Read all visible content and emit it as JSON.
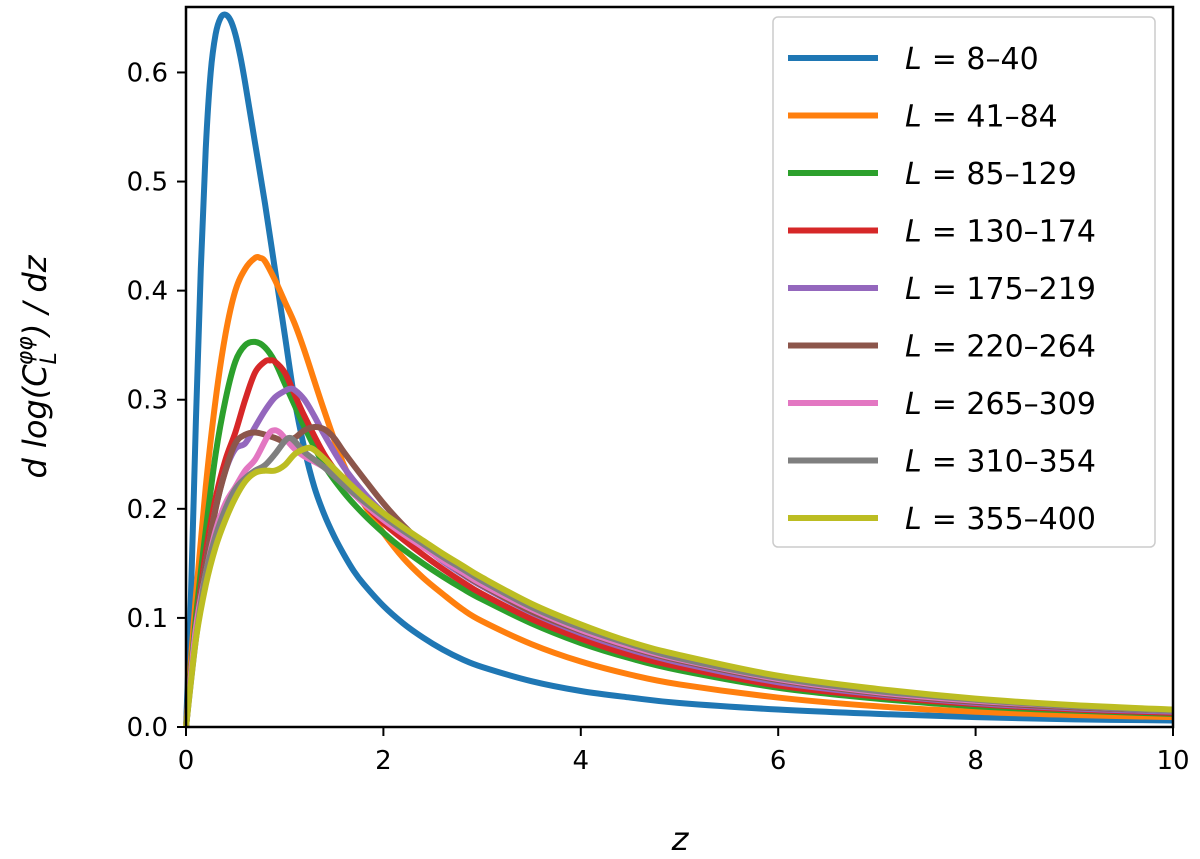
{
  "chart_data": {
    "type": "line",
    "title": "",
    "xlabel": "z",
    "ylabel": "d log(C_L^{φφ}) / dz",
    "xlim": [
      0,
      10
    ],
    "ylim": [
      0,
      0.66
    ],
    "xticks": [
      0,
      2,
      4,
      6,
      8,
      10
    ],
    "yticks": [
      0.0,
      0.1,
      0.2,
      0.3,
      0.4,
      0.5,
      0.6
    ],
    "xtick_labels": [
      "0",
      "2",
      "4",
      "6",
      "8",
      "10"
    ],
    "ytick_labels": [
      "0.0",
      "0.1",
      "0.2",
      "0.3",
      "0.4",
      "0.5",
      "0.6"
    ],
    "grid": false,
    "legend_position": "top-right",
    "series": [
      {
        "name": "L = 8–40",
        "legend_prefix": "L",
        "legend_suffix": "= 8–40",
        "color": "#1f77b4",
        "x": [
          0,
          0.05,
          0.1,
          0.15,
          0.2,
          0.25,
          0.3,
          0.35,
          0.4,
          0.45,
          0.5,
          0.55,
          0.6,
          0.7,
          0.8,
          0.9,
          1.0,
          1.1,
          1.2,
          1.3,
          1.4,
          1.5,
          1.6,
          1.7,
          1.8,
          2.0,
          2.2,
          2.4,
          2.6,
          2.8,
          3.0,
          3.5,
          4.0,
          4.5,
          5.0,
          6.0,
          7.0,
          8.0,
          9.0,
          10.0
        ],
        "y": [
          0,
          0.12,
          0.28,
          0.42,
          0.53,
          0.6,
          0.635,
          0.65,
          0.653,
          0.648,
          0.635,
          0.615,
          0.59,
          0.535,
          0.48,
          0.42,
          0.36,
          0.3,
          0.255,
          0.22,
          0.195,
          0.175,
          0.158,
          0.143,
          0.131,
          0.111,
          0.095,
          0.082,
          0.071,
          0.062,
          0.055,
          0.042,
          0.033,
          0.027,
          0.022,
          0.016,
          0.012,
          0.009,
          0.007,
          0.006
        ]
      },
      {
        "name": "L = 41–84",
        "legend_prefix": "L",
        "legend_suffix": "= 41–84",
        "color": "#ff7f0e",
        "x": [
          0,
          0.1,
          0.2,
          0.3,
          0.4,
          0.5,
          0.6,
          0.7,
          0.75,
          0.8,
          0.9,
          1.0,
          1.1,
          1.2,
          1.4,
          1.6,
          1.8,
          2.0,
          2.2,
          2.4,
          2.6,
          2.8,
          3.0,
          3.5,
          4.0,
          4.5,
          5.0,
          6.0,
          7.0,
          8.0,
          9.0,
          10.0
        ],
        "y": [
          0,
          0.12,
          0.22,
          0.3,
          0.36,
          0.4,
          0.42,
          0.43,
          0.43,
          0.427,
          0.41,
          0.39,
          0.37,
          0.345,
          0.29,
          0.24,
          0.205,
          0.178,
          0.155,
          0.137,
          0.122,
          0.108,
          0.097,
          0.076,
          0.06,
          0.048,
          0.039,
          0.027,
          0.019,
          0.014,
          0.011,
          0.009
        ]
      },
      {
        "name": "L = 85–129",
        "legend_prefix": "L",
        "legend_suffix": "= 85–129",
        "color": "#2ca02c",
        "x": [
          0,
          0.1,
          0.2,
          0.3,
          0.4,
          0.5,
          0.6,
          0.7,
          0.8,
          0.9,
          1.0,
          1.1,
          1.2,
          1.4,
          1.6,
          1.8,
          2.0,
          2.2,
          2.4,
          2.6,
          2.8,
          3.0,
          3.5,
          4.0,
          4.5,
          5.0,
          6.0,
          7.0,
          8.0,
          9.0,
          10.0
        ],
        "y": [
          0,
          0.1,
          0.18,
          0.25,
          0.3,
          0.335,
          0.35,
          0.353,
          0.348,
          0.335,
          0.315,
          0.295,
          0.275,
          0.24,
          0.215,
          0.195,
          0.178,
          0.163,
          0.15,
          0.138,
          0.127,
          0.117,
          0.095,
          0.077,
          0.063,
          0.052,
          0.036,
          0.026,
          0.019,
          0.015,
          0.012
        ]
      },
      {
        "name": "L = 130–174",
        "legend_prefix": "L",
        "legend_suffix": "= 130–174",
        "color": "#d62728",
        "x": [
          0,
          0.1,
          0.2,
          0.3,
          0.4,
          0.5,
          0.6,
          0.7,
          0.8,
          0.85,
          0.9,
          1.0,
          1.1,
          1.2,
          1.4,
          1.6,
          1.8,
          2.0,
          2.2,
          2.4,
          2.6,
          2.8,
          3.0,
          3.5,
          4.0,
          4.5,
          5.0,
          6.0,
          7.0,
          8.0,
          9.0,
          10.0
        ],
        "y": [
          0,
          0.09,
          0.16,
          0.21,
          0.245,
          0.27,
          0.3,
          0.325,
          0.335,
          0.336,
          0.335,
          0.325,
          0.305,
          0.285,
          0.25,
          0.225,
          0.205,
          0.187,
          0.172,
          0.158,
          0.145,
          0.133,
          0.122,
          0.099,
          0.081,
          0.066,
          0.055,
          0.038,
          0.028,
          0.021,
          0.016,
          0.013
        ]
      },
      {
        "name": "L = 175–219",
        "legend_prefix": "L",
        "legend_suffix": "= 175–219",
        "color": "#9467bd",
        "x": [
          0,
          0.1,
          0.2,
          0.3,
          0.4,
          0.5,
          0.6,
          0.7,
          0.8,
          0.9,
          1.0,
          1.05,
          1.1,
          1.2,
          1.3,
          1.4,
          1.6,
          1.8,
          2.0,
          2.2,
          2.4,
          2.6,
          2.8,
          3.0,
          3.5,
          4.0,
          4.5,
          5.0,
          6.0,
          7.0,
          8.0,
          9.0,
          10.0
        ],
        "y": [
          0,
          0.09,
          0.15,
          0.2,
          0.235,
          0.255,
          0.26,
          0.275,
          0.29,
          0.302,
          0.308,
          0.31,
          0.309,
          0.3,
          0.285,
          0.268,
          0.238,
          0.215,
          0.196,
          0.18,
          0.166,
          0.152,
          0.14,
          0.129,
          0.105,
          0.086,
          0.071,
          0.059,
          0.041,
          0.03,
          0.022,
          0.017,
          0.014
        ]
      },
      {
        "name": "L = 220–264",
        "legend_prefix": "L",
        "legend_suffix": "= 220–264",
        "color": "#8c564b",
        "x": [
          0,
          0.1,
          0.2,
          0.3,
          0.4,
          0.5,
          0.6,
          0.7,
          0.8,
          0.9,
          1.0,
          1.1,
          1.2,
          1.3,
          1.4,
          1.5,
          1.6,
          1.8,
          2.0,
          2.2,
          2.4,
          2.6,
          2.8,
          3.0,
          3.5,
          4.0,
          4.5,
          5.0,
          6.0,
          7.0,
          8.0,
          9.0,
          10.0
        ],
        "y": [
          0,
          0.09,
          0.15,
          0.2,
          0.235,
          0.26,
          0.268,
          0.27,
          0.268,
          0.265,
          0.262,
          0.265,
          0.272,
          0.275,
          0.273,
          0.265,
          0.252,
          0.228,
          0.205,
          0.185,
          0.168,
          0.154,
          0.141,
          0.13,
          0.106,
          0.088,
          0.073,
          0.061,
          0.043,
          0.031,
          0.023,
          0.018,
          0.015
        ]
      },
      {
        "name": "L = 265–309",
        "legend_prefix": "L",
        "legend_suffix": "= 265–309",
        "color": "#e377c2",
        "x": [
          0,
          0.1,
          0.2,
          0.3,
          0.4,
          0.5,
          0.6,
          0.7,
          0.8,
          0.85,
          0.9,
          0.95,
          1.0,
          1.1,
          1.2,
          1.4,
          1.6,
          1.8,
          2.0,
          2.2,
          2.4,
          2.6,
          2.8,
          3.0,
          3.5,
          4.0,
          4.5,
          5.0,
          6.0,
          7.0,
          8.0,
          9.0,
          10.0
        ],
        "y": [
          0,
          0.09,
          0.14,
          0.18,
          0.205,
          0.22,
          0.235,
          0.245,
          0.262,
          0.27,
          0.272,
          0.27,
          0.265,
          0.255,
          0.248,
          0.238,
          0.222,
          0.205,
          0.19,
          0.177,
          0.165,
          0.153,
          0.142,
          0.131,
          0.108,
          0.089,
          0.074,
          0.062,
          0.044,
          0.032,
          0.024,
          0.019,
          0.015
        ]
      },
      {
        "name": "L = 310–354",
        "legend_prefix": "L",
        "legend_suffix": "= 310–354",
        "color": "#7f7f7f",
        "x": [
          0,
          0.1,
          0.2,
          0.3,
          0.4,
          0.5,
          0.6,
          0.7,
          0.8,
          0.9,
          1.0,
          1.05,
          1.1,
          1.2,
          1.3,
          1.4,
          1.6,
          1.8,
          2.0,
          2.2,
          2.4,
          2.6,
          2.8,
          3.0,
          3.5,
          4.0,
          4.5,
          5.0,
          6.0,
          7.0,
          8.0,
          9.0,
          10.0
        ],
        "y": [
          0,
          0.08,
          0.14,
          0.175,
          0.2,
          0.218,
          0.228,
          0.235,
          0.24,
          0.25,
          0.262,
          0.265,
          0.262,
          0.252,
          0.245,
          0.238,
          0.222,
          0.207,
          0.193,
          0.18,
          0.168,
          0.156,
          0.145,
          0.134,
          0.11,
          0.091,
          0.076,
          0.063,
          0.045,
          0.033,
          0.025,
          0.019,
          0.015
        ]
      },
      {
        "name": "L = 355–400",
        "legend_prefix": "L",
        "legend_suffix": "= 355–400",
        "color": "#bcbd22",
        "x": [
          0,
          0.1,
          0.2,
          0.3,
          0.4,
          0.5,
          0.6,
          0.7,
          0.8,
          0.9,
          1.0,
          1.1,
          1.2,
          1.25,
          1.3,
          1.4,
          1.6,
          1.8,
          2.0,
          2.2,
          2.4,
          2.6,
          2.8,
          3.0,
          3.5,
          4.0,
          4.5,
          5.0,
          6.0,
          7.0,
          8.0,
          9.0,
          10.0
        ],
        "y": [
          0,
          0.08,
          0.13,
          0.165,
          0.19,
          0.21,
          0.225,
          0.233,
          0.235,
          0.235,
          0.24,
          0.25,
          0.255,
          0.256,
          0.254,
          0.246,
          0.228,
          0.211,
          0.196,
          0.183,
          0.171,
          0.159,
          0.148,
          0.137,
          0.113,
          0.094,
          0.078,
          0.066,
          0.047,
          0.035,
          0.026,
          0.02,
          0.016
        ]
      }
    ]
  }
}
